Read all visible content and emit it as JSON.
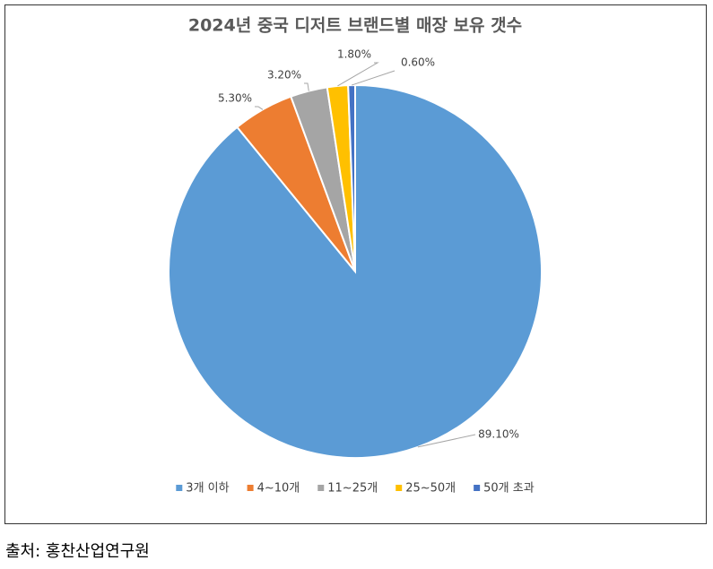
{
  "chart_data": {
    "type": "pie",
    "title": "2024년 중국 디저트 브랜드별 매장 보유 갯수",
    "categories": [
      "3개 이하",
      "4~10개",
      "11~25개",
      "25~50개",
      "50개 초과"
    ],
    "values": [
      89.1,
      5.3,
      3.2,
      1.8,
      0.6
    ],
    "value_labels": [
      "89.10%",
      "5.30%",
      "3.20%",
      "1.80%",
      "0.60%"
    ],
    "colors": [
      "#5b9bd5",
      "#ed7d31",
      "#a5a5a5",
      "#ffc000",
      "#4472c4"
    ],
    "legend": "bottom"
  },
  "source": "출처:  홍찬산업연구원"
}
